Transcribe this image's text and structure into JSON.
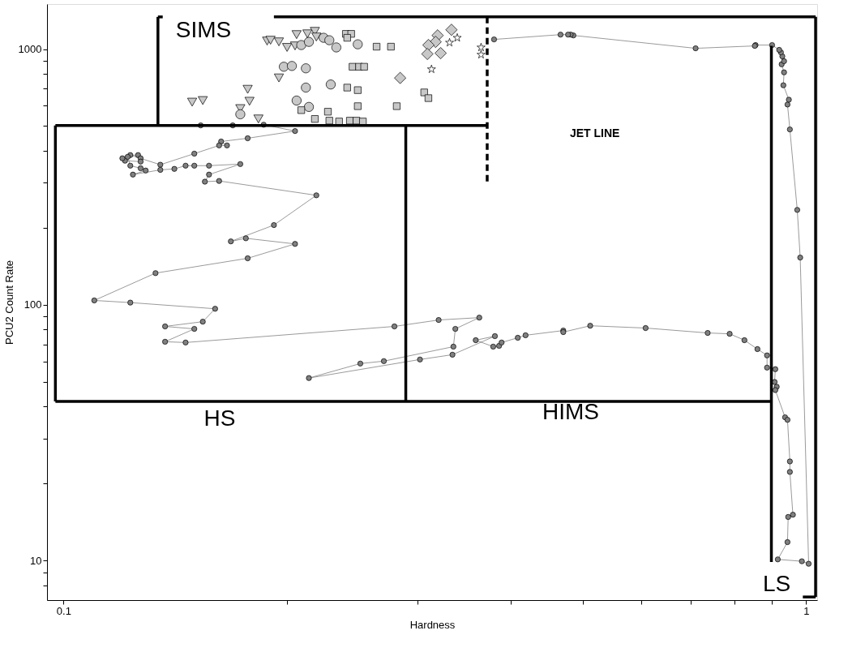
{
  "chart_data": {
    "type": "scatter",
    "xlabel": "Hardness",
    "ylabel": "PCU2 Count Rate",
    "log": "xy",
    "grid": false,
    "xlim": [
      0.095,
      1.035
    ],
    "ylim": [
      7,
      1500
    ],
    "xticks": [
      0.1,
      {
        "value": 0.2,
        "label": null
      },
      {
        "value": 0.3,
        "label": null
      },
      {
        "value": 0.4,
        "label": null
      },
      {
        "value": 0.5,
        "label": null
      },
      {
        "value": 0.6,
        "label": null
      },
      {
        "value": 0.7,
        "label": null
      },
      {
        "value": 0.8,
        "label": null
      },
      {
        "value": 0.9,
        "label": null
      },
      1
    ],
    "yticks": [
      {
        "value": 8,
        "label": null
      },
      {
        "value": 9,
        "label": null
      },
      10,
      {
        "value": 20,
        "label": null
      },
      {
        "value": 30,
        "label": null
      },
      {
        "value": 40,
        "label": null
      },
      {
        "value": 50,
        "label": null
      },
      {
        "value": 60,
        "label": null
      },
      {
        "value": 70,
        "label": null
      },
      {
        "value": 80,
        "label": null
      },
      {
        "value": 90,
        "label": null
      },
      100,
      {
        "value": 200,
        "label": null
      },
      {
        "value": 300,
        "label": null
      },
      {
        "value": 400,
        "label": null
      },
      {
        "value": 500,
        "label": null
      },
      {
        "value": 600,
        "label": null
      },
      {
        "value": 700,
        "label": null
      },
      {
        "value": 800,
        "label": null
      },
      {
        "value": 900,
        "label": null
      },
      1000
    ],
    "series": [
      {
        "type": "line",
        "marker": "circle",
        "color": "#808080",
        "x": [
          0.153,
          0.169,
          0.186,
          0.205,
          0.177,
          0.163,
          0.166,
          0.162,
          0.15,
          0.135,
          0.123,
          0.126,
          0.127,
          0.127,
          0.121,
          0.12,
          0.122,
          0.123,
          0.127,
          0.129,
          0.124,
          0.135,
          0.141,
          0.146,
          0.15,
          0.157,
          0.173,
          0.157,
          0.155,
          0.162,
          0.219,
          0.192,
          0.168,
          0.176,
          0.205,
          0.177,
          0.133,
          0.11,
          0.123,
          0.16,
          0.154,
          0.137,
          0.15,
          0.137,
          0.146,
          0.279,
          0.32,
          0.363,
          0.337,
          0.335,
          0.27,
          0.251,
          0.214,
          0.302,
          0.334,
          0.381,
          0.359,
          0.379,
          0.386,
          0.389,
          0.409,
          0.419,
          0.471,
          0.471,
          0.512,
          0.608,
          0.737,
          0.789,
          0.826,
          0.86,
          0.886,
          0.886,
          0.909,
          0.907,
          0.913,
          0.909,
          0.937,
          0.944,
          0.951,
          0.951,
          0.96,
          0.946,
          0.944,
          0.916,
          0.987,
          1.008,
          0.982,
          0.973,
          0.951,
          0.944,
          0.948,
          0.932,
          0.934,
          0.927,
          0.934,
          0.929,
          0.925,
          0.92,
          0.9,
          0.855,
          0.853,
          0.71,
          0.486,
          0.482,
          0.478,
          0.467,
          0.38
        ],
        "values": [
          503,
          503,
          506,
          478,
          448,
          435,
          420,
          420,
          390,
          353,
          385,
          385,
          374,
          363,
          366,
          374,
          379,
          350,
          342,
          335,
          323,
          337,
          340,
          350,
          350,
          350,
          355,
          323,
          303,
          305,
          268,
          205,
          177,
          182,
          173,
          152,
          133,
          104,
          102,
          96.5,
          85.9,
          82.3,
          80.5,
          71.7,
          71.2,
          82.3,
          87.2,
          89.1,
          80.5,
          68.6,
          60.2,
          58.9,
          51.7,
          61.1,
          63.8,
          75.4,
          72.7,
          68.6,
          69.1,
          71.2,
          74.3,
          76.0,
          79.3,
          78.2,
          82.8,
          81.1,
          77.6,
          77.0,
          72.7,
          67.1,
          63.4,
          56.8,
          56.0,
          49.9,
          47.8,
          46.4,
          36.3,
          35.5,
          24.4,
          22.2,
          15.1,
          14.8,
          11.8,
          10.1,
          9.93,
          9.71,
          153,
          235,
          485,
          607,
          634,
          722,
          811,
          872,
          897,
          937,
          971,
          993,
          1037,
          1037,
          1029,
          1007,
          1131,
          1139,
          1139,
          1139,
          1091
        ]
      },
      {
        "marker": "triangle",
        "color": "#c8c8c8",
        "x": [
          0.188,
          0.19,
          0.195,
          0.2,
          0.205,
          0.206,
          0.213,
          0.218,
          0.219,
          0.195,
          0.177,
          0.149,
          0.154,
          0.178,
          0.173,
          0.183
        ],
        "values": [
          1075,
          1083,
          1067,
          1015,
          1029,
          1139,
          1147,
          1173,
          1115,
          771,
          696,
          620,
          629,
          625,
          585,
          533
        ]
      },
      {
        "marker": "circle",
        "color": "#c8c8c8",
        "x": [
          0.209,
          0.214,
          0.224,
          0.228,
          0.233,
          0.249,
          0.198,
          0.203,
          0.212,
          0.212,
          0.229,
          0.206,
          0.214,
          0.173
        ],
        "values": [
          1037,
          1067,
          1107,
          1083,
          1015,
          1044,
          853,
          859,
          841,
          707,
          727,
          629,
          594,
          556
        ]
      },
      {
        "marker": "square",
        "color": "#c8c8c8",
        "x": [
          0.24,
          0.244,
          0.241,
          0.264,
          0.276,
          0.245,
          0.25,
          0.254,
          0.241,
          0.249,
          0.249,
          0.209,
          0.227,
          0.281,
          0.306,
          0.31,
          0.218,
          0.228,
          0.235,
          0.243,
          0.248,
          0.253
        ],
        "values": [
          1147,
          1147,
          1107,
          1022,
          1022,
          853,
          853,
          853,
          707,
          691,
          598,
          577,
          569,
          598,
          677,
          643,
          533,
          525,
          521,
          525,
          525,
          521
        ]
      },
      {
        "marker": "diamond",
        "color": "#c8c8c8",
        "x": [
          0.333,
          0.319,
          0.317,
          0.31,
          0.309,
          0.322,
          0.284
        ],
        "values": [
          1190,
          1131,
          1067,
          1037,
          957,
          964,
          771
        ]
      },
      {
        "marker": "star",
        "color": "#ffffff",
        "x": [
          0.339,
          0.331,
          0.365,
          0.365,
          0.313
        ],
        "values": [
          1107,
          1060,
          1015,
          951,
          834
        ]
      },
      {
        "type": "line",
        "marker": "none",
        "color": "#000000",
        "x": [
          0.0975,
          0.372
        ],
        "values": [
          503,
          503
        ]
      },
      {
        "type": "line",
        "marker": "none",
        "color": "#000000",
        "x": [
          0.0975,
          0.898
        ],
        "values": [
          41.9,
          41.9
        ]
      },
      {
        "type": "line",
        "marker": "none",
        "color": "#000000",
        "x": [
          0.0975,
          0.0975
        ],
        "values": [
          503,
          41.9
        ]
      },
      {
        "type": "line",
        "marker": "none",
        "color": "#000000",
        "x": [
          0.289,
          0.289
        ],
        "values": [
          503,
          41.9
        ]
      },
      {
        "type": "line",
        "marker": "none",
        "color": "#000000",
        "x": [
          0.134,
          0.136
        ],
        "values": [
          1336,
          1336
        ]
      },
      {
        "type": "line",
        "marker": "none",
        "color": "#000000",
        "x": [
          0.134,
          0.134
        ],
        "values": [
          1336,
          503
        ]
      },
      {
        "type": "line",
        "marker": "none",
        "color": "#000000",
        "x": [
          0.192,
          1.03
        ],
        "values": [
          1336,
          1336
        ]
      },
      {
        "type": "line",
        "marker": "none",
        "color": "#000000",
        "x": [
          1.03,
          1.03
        ],
        "values": [
          1336,
          7.2
        ]
      },
      {
        "type": "line",
        "marker": "none",
        "color": "#000000",
        "x": [
          0.99,
          1.03
        ],
        "values": [
          7.2,
          7.2
        ]
      },
      {
        "type": "line",
        "marker": "none",
        "color": "#000000",
        "x": [
          0.898,
          0.898
        ],
        "values": [
          1029,
          9.86
        ]
      },
      {
        "type": "line",
        "marker": "none",
        "color": "#000000",
        "line_style": "dashed",
        "x": [
          0.372,
          0.372
        ],
        "values": [
          1336,
          296
        ]
      }
    ],
    "annotations": [
      "SIMS",
      "HS",
      "HIMS",
      "LS",
      "JET LINE"
    ]
  }
}
